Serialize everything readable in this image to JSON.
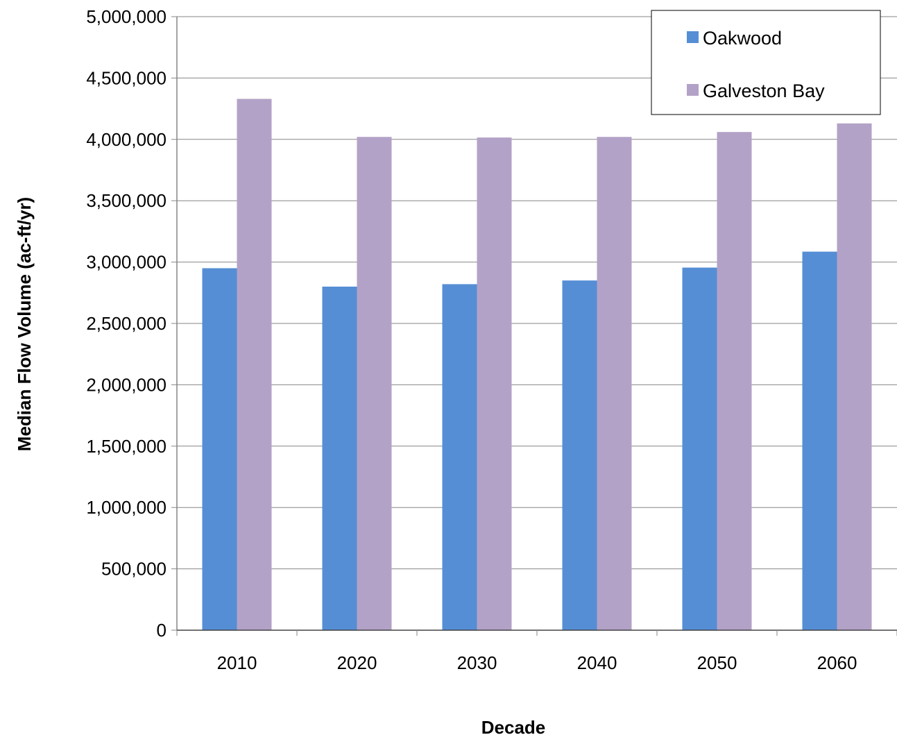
{
  "chart_data": {
    "type": "bar",
    "title": "",
    "xlabel": "Decade",
    "ylabel": "Median Flow Volume (ac-ft/yr)",
    "ylim": [
      0,
      5000000
    ],
    "ytick_step": 500000,
    "grid": "horizontal",
    "legend_position": "top-right",
    "categories": [
      "2010",
      "2020",
      "2030",
      "2040",
      "2050",
      "2060"
    ],
    "series": [
      {
        "name": "Oakwood",
        "color": "#558ed5",
        "values": [
          2950000,
          2800000,
          2820000,
          2850000,
          2955000,
          3085000
        ]
      },
      {
        "name": "Galveston Bay",
        "color": "#b3a2c7",
        "values": [
          4330000,
          4020000,
          4015000,
          4020000,
          4060000,
          4130000
        ]
      }
    ]
  }
}
